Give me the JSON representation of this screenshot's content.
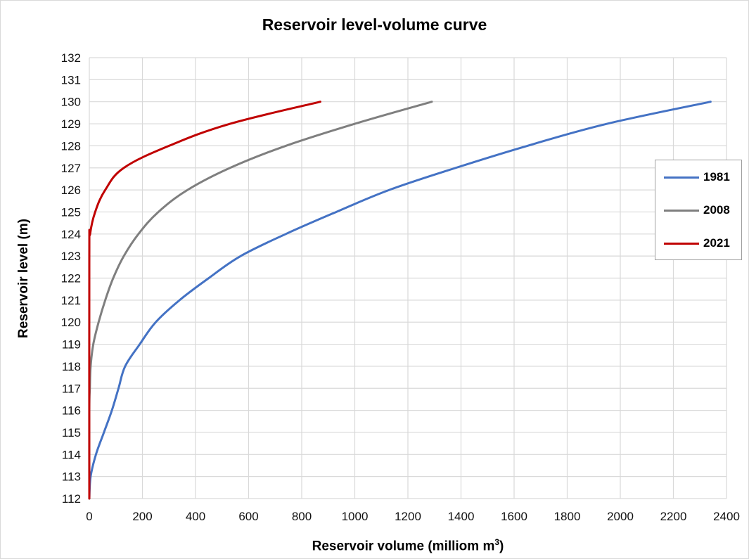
{
  "chart_data": {
    "type": "line",
    "title": "Reservoir level-volume curve",
    "xlabel_text": "Reservoir volume (milliom m",
    "xlabel_sup": "3",
    "xlabel_close": ")",
    "ylabel": "Reservoir level (m)",
    "xlim": [
      0,
      2400
    ],
    "ylim": [
      112,
      132
    ],
    "xticks": [
      0,
      200,
      400,
      600,
      800,
      1000,
      1200,
      1400,
      1600,
      1800,
      2000,
      2200,
      2400
    ],
    "yticks": [
      112,
      113,
      114,
      115,
      116,
      117,
      118,
      119,
      120,
      121,
      122,
      123,
      124,
      125,
      126,
      127,
      128,
      129,
      130,
      131,
      132
    ],
    "grid": true,
    "legend_position": "right",
    "series": [
      {
        "name": "1981",
        "color": "#4472c4",
        "points": [
          [
            0,
            112
          ],
          [
            5,
            113
          ],
          [
            25,
            114
          ],
          [
            55,
            115
          ],
          [
            85,
            116
          ],
          [
            110,
            117
          ],
          [
            135,
            118
          ],
          [
            190,
            119
          ],
          [
            250,
            120
          ],
          [
            340,
            121
          ],
          [
            450,
            122
          ],
          [
            570,
            123
          ],
          [
            740,
            124
          ],
          [
            930,
            125
          ],
          [
            1130,
            126
          ],
          [
            1380,
            127
          ],
          [
            1650,
            128
          ],
          [
            1950,
            129
          ],
          [
            2340,
            130
          ]
        ]
      },
      {
        "name": "2008",
        "color": "#7f7f7f",
        "points": [
          [
            0,
            112
          ],
          [
            0,
            116
          ],
          [
            2,
            117
          ],
          [
            5,
            118
          ],
          [
            15,
            119
          ],
          [
            35,
            120
          ],
          [
            60,
            121
          ],
          [
            90,
            122
          ],
          [
            130,
            123
          ],
          [
            185,
            124
          ],
          [
            260,
            125
          ],
          [
            370,
            126
          ],
          [
            530,
            127
          ],
          [
            740,
            128
          ],
          [
            1000,
            129
          ],
          [
            1290,
            130
          ]
        ]
      },
      {
        "name": "2021",
        "color": "#c00000",
        "points": [
          [
            0,
            112
          ],
          [
            0,
            123
          ],
          [
            3,
            124
          ],
          [
            22,
            125
          ],
          [
            60,
            126
          ],
          [
            130,
            127
          ],
          [
            300,
            128
          ],
          [
            530,
            129
          ],
          [
            870,
            130
          ]
        ]
      }
    ]
  }
}
